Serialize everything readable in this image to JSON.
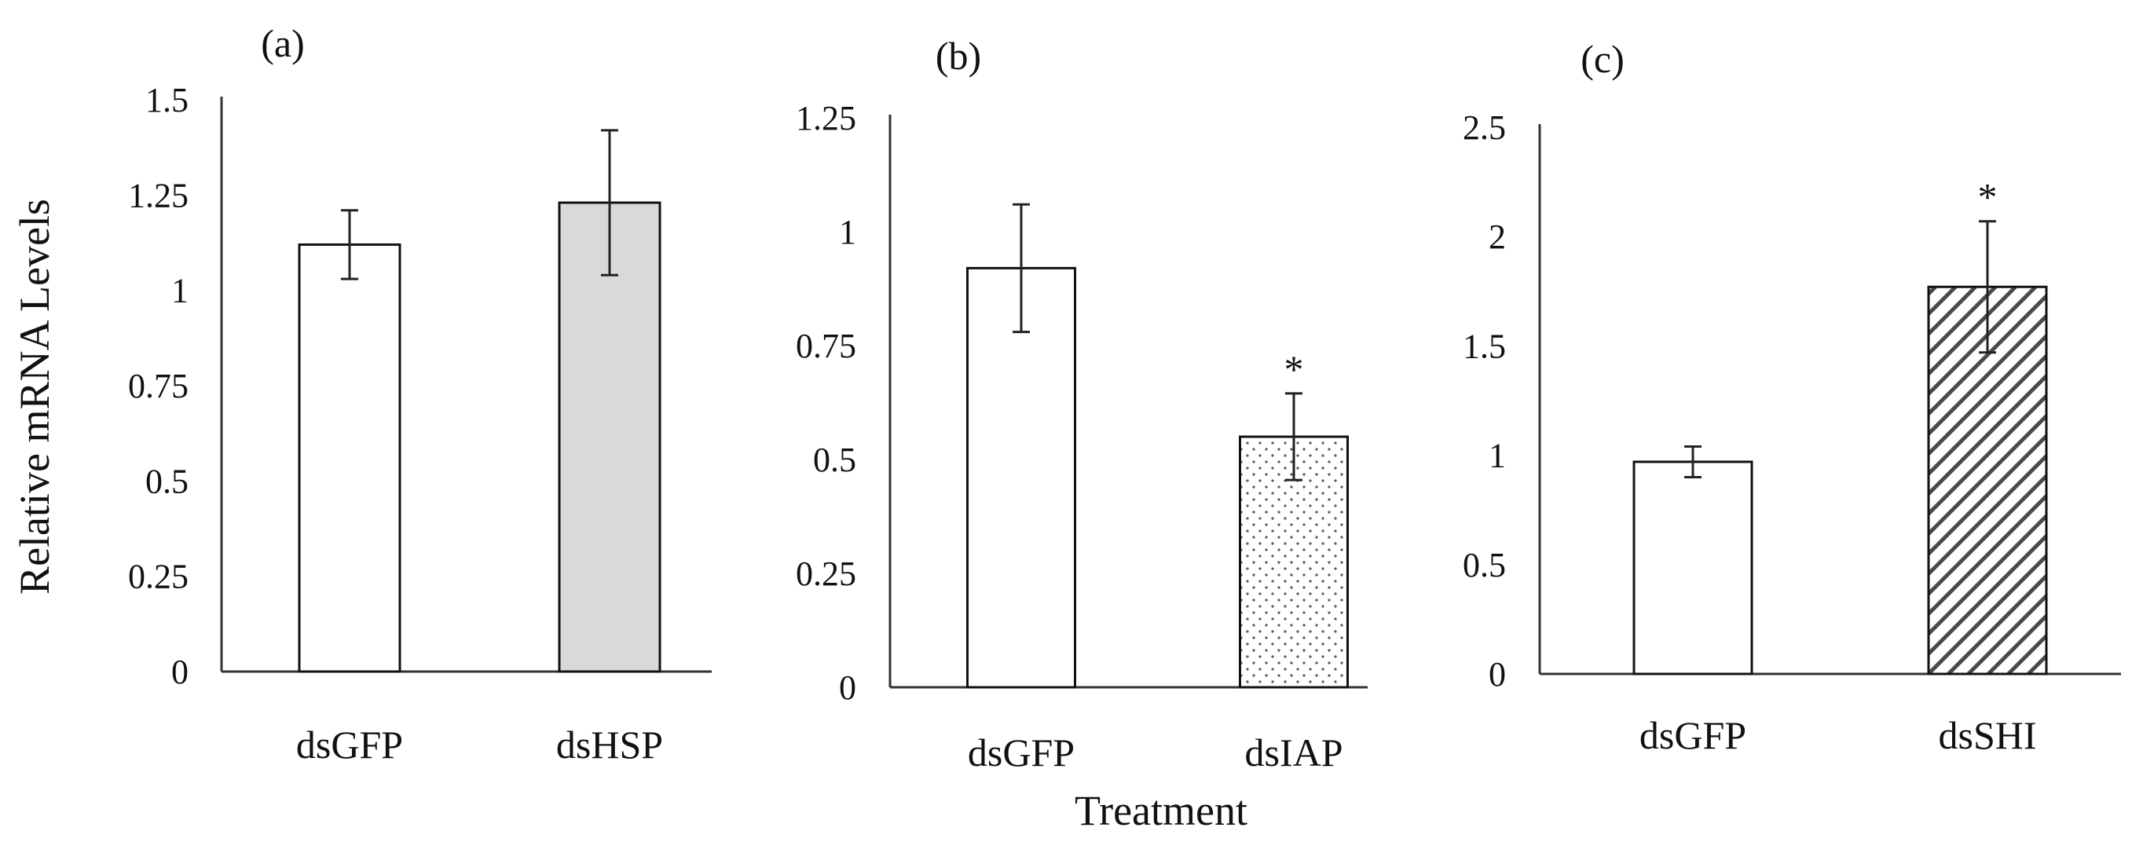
{
  "figure": {
    "ylabel": "Relative mRNA Levels",
    "xlabel": "Treatment"
  },
  "chart_data": [
    {
      "type": "bar",
      "panel_label": "(a)",
      "categories": [
        "dsGFP",
        "dsHSP"
      ],
      "values": [
        1.12,
        1.23
      ],
      "errors": [
        0.09,
        0.19
      ],
      "significance": [
        "",
        ""
      ],
      "fills": [
        "white",
        "gray"
      ],
      "ylim": [
        0,
        1.5
      ],
      "yticks": [
        0,
        0.25,
        0.5,
        0.75,
        1,
        1.25,
        1.5
      ],
      "ytick_labels": [
        "0",
        "0.25",
        "0.5",
        "0.75",
        "1",
        "1.25",
        "1.5"
      ],
      "ylabel": "Relative mRNA Levels",
      "xlabel": ""
    },
    {
      "type": "bar",
      "panel_label": "(b)",
      "categories": [
        "dsGFP",
        "dsIAP"
      ],
      "values": [
        0.92,
        0.55
      ],
      "errors": [
        0.14,
        0.095
      ],
      "significance": [
        "",
        "*"
      ],
      "fills": [
        "white",
        "dots"
      ],
      "ylim": [
        0,
        1.25
      ],
      "yticks": [
        0,
        0.25,
        0.5,
        0.75,
        1,
        1.25
      ],
      "ytick_labels": [
        "0",
        "0.25",
        "0.5",
        "0.75",
        "1",
        "1.25"
      ],
      "ylabel": "",
      "xlabel": "Treatment"
    },
    {
      "type": "bar",
      "panel_label": "(c)",
      "categories": [
        "dsGFP",
        "dsSHI"
      ],
      "values": [
        0.97,
        1.77
      ],
      "errors": [
        0.07,
        0.3
      ],
      "significance": [
        "",
        "*"
      ],
      "fills": [
        "white",
        "hatch"
      ],
      "ylim": [
        0,
        2.5
      ],
      "yticks": [
        0,
        0.5,
        1,
        1.5,
        2,
        2.5
      ],
      "ytick_labels": [
        "0",
        "0.5",
        "1",
        "1.5",
        "2",
        "2.5"
      ],
      "ylabel": "",
      "xlabel": ""
    }
  ],
  "colors": {
    "axis": "#333333",
    "bar_stroke": "#111111",
    "bar_white": "#ffffff",
    "bar_gray": "#d9d9d9",
    "pattern_ink": "#555555",
    "text": "#111111"
  }
}
